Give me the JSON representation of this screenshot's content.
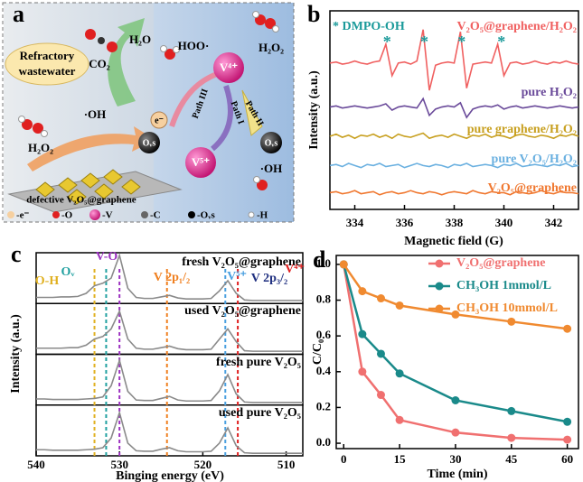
{
  "diagram": {
    "panel": "a",
    "nodes": [
      "Refractory",
      "wastewater",
      "CO₂",
      "H₂O",
      "HOO·",
      "H₂O₂",
      "·OH",
      "H₂O₂",
      "e⁻",
      "Path III",
      "Path I",
      "Path II",
      "V⁴⁺",
      "V⁵⁺",
      "Oᵥs",
      "Oᵥs",
      "·OH",
      "defective V₂O₅@graphene"
    ],
    "legend": [
      "-e⁻",
      "-O",
      "-V",
      "-C",
      "-Oᵥs",
      "-H"
    ]
  },
  "chart_data": [
    {
      "type": "line",
      "panel": "b",
      "xlabel": "Magnetic field (G)",
      "ylabel": "Intensity (a.u.)",
      "note": "* DMPO-OH",
      "note_color": "#1a9a9a",
      "peak_marker": "*",
      "peak_x": [
        335.3,
        336.8,
        338.3,
        339.9
      ],
      "xlim": [
        333,
        343
      ],
      "ylim": [
        1.5,
        11
      ],
      "xticks": [
        334,
        336,
        338,
        340,
        342
      ],
      "x": [
        333,
        333.25,
        333.5,
        333.75,
        334,
        334.25,
        334.5,
        334.75,
        335,
        335.25,
        335.5,
        335.75,
        336,
        336.25,
        336.5,
        336.75,
        337,
        337.25,
        337.5,
        337.75,
        338,
        338.25,
        338.5,
        338.75,
        339,
        339.25,
        339.5,
        339.75,
        340,
        340.25,
        340.5,
        340.75,
        341,
        341.25,
        341.5,
        341.75,
        342,
        342.25,
        342.5,
        342.75,
        343
      ],
      "series": [
        {
          "name": "V₂O₅@graphene/H₂O₂",
          "color": "#f06060",
          "values": [
            8.5,
            8.55,
            8.45,
            8.5,
            8.6,
            8.5,
            8.45,
            8.55,
            8.6,
            9.4,
            7.9,
            8.5,
            8.55,
            8.45,
            8.6,
            10.1,
            7.2,
            8.4,
            8.5,
            8.55,
            8.5,
            10.0,
            7.3,
            8.45,
            8.5,
            8.55,
            8.5,
            9.4,
            7.9,
            8.5,
            8.55,
            8.45,
            8.5,
            8.6,
            8.5,
            8.45,
            8.55,
            8.5,
            8.6,
            8.5,
            8.45
          ]
        },
        {
          "name": "pure H₂O₂",
          "color": "#6a4a9a",
          "values": [
            6.4,
            6.45,
            6.35,
            6.4,
            6.45,
            6.4,
            6.35,
            6.4,
            6.45,
            6.55,
            6.25,
            6.4,
            6.45,
            6.4,
            6.35,
            6.8,
            6.0,
            6.3,
            6.4,
            6.45,
            6.4,
            6.6,
            5.9,
            6.3,
            6.4,
            6.45,
            6.4,
            6.5,
            6.3,
            6.4,
            6.45,
            6.35,
            6.4,
            6.45,
            6.4,
            6.35,
            6.4,
            6.45,
            6.4,
            6.35,
            6.4
          ]
        },
        {
          "name": "pure graphene/H₂O₂",
          "color": "#c8a020",
          "values": [
            5.0,
            5.1,
            4.95,
            5.05,
            4.9,
            5.05,
            5.0,
            5.1,
            4.95,
            5.05,
            4.9,
            5.1,
            5.0,
            4.95,
            5.05,
            5.15,
            4.9,
            5.0,
            5.05,
            4.95,
            5.1,
            5.0,
            4.9,
            5.05,
            5.0,
            5.1,
            4.95,
            5.05,
            5.0,
            4.9,
            5.05,
            5.1,
            5.0,
            4.95,
            5.05,
            5.0,
            4.9,
            5.05,
            5.0,
            5.1,
            5.0
          ]
        },
        {
          "name": "pure V₂O₅/H₂O₂",
          "color": "#6ab0e0",
          "values": [
            3.6,
            3.65,
            3.55,
            3.7,
            3.6,
            3.5,
            3.65,
            3.6,
            3.7,
            3.55,
            3.6,
            3.65,
            3.5,
            3.6,
            3.7,
            3.6,
            3.55,
            3.65,
            3.6,
            3.5,
            3.65,
            3.6,
            3.7,
            3.55,
            3.6,
            3.65,
            3.6,
            3.5,
            3.65,
            3.6,
            3.7,
            3.55,
            3.6,
            3.65,
            3.6,
            3.55,
            3.65,
            3.6,
            3.7,
            3.55,
            3.6
          ]
        },
        {
          "name": "V₂O₅@graphene",
          "color": "#f07830",
          "values": [
            2.3,
            2.35,
            2.25,
            2.3,
            2.4,
            2.25,
            2.3,
            2.35,
            2.2,
            2.3,
            2.35,
            2.25,
            2.3,
            2.4,
            2.3,
            2.25,
            2.35,
            2.3,
            2.2,
            2.3,
            2.35,
            2.3,
            2.25,
            2.4,
            2.3,
            2.25,
            2.35,
            2.3,
            2.3,
            2.2,
            2.35,
            2.3,
            2.25,
            2.3,
            2.4,
            2.3,
            2.25,
            2.35,
            2.3,
            2.3,
            2.25
          ]
        }
      ]
    },
    {
      "type": "line",
      "panel": "c",
      "xlabel": "Binging energy (eV)",
      "ylabel": "Intensity (a.u.)",
      "separate_panels": true,
      "xlim": [
        540,
        508
      ],
      "ylim": [
        0,
        1
      ],
      "xticks": [
        540,
        530,
        520,
        510
      ],
      "x": [
        540,
        539,
        538,
        537,
        536,
        535,
        534,
        533,
        532,
        531,
        530,
        529,
        528,
        527,
        526,
        525,
        524,
        523,
        522,
        521,
        520,
        519,
        518,
        517,
        516,
        515,
        514,
        513,
        512,
        511,
        510,
        509,
        508
      ],
      "annotations": [
        {
          "text": "V-O",
          "color": "#9b30c0"
        },
        {
          "text": "O-H",
          "color": "#e0b020"
        },
        {
          "text": "Oᵥ",
          "color": "#20a0a0"
        },
        {
          "text": "V 2p₁/₂",
          "color": "#f08020"
        },
        {
          "text": "V⁵⁺",
          "color": "#4aa0e0"
        },
        {
          "text": "V 2p₃/₂",
          "color": "#203080"
        },
        {
          "text": "V⁴⁺",
          "color": "#e02020"
        }
      ],
      "reference_lines": [
        {
          "x": 530,
          "color": "#9b30c0"
        },
        {
          "x": 533,
          "color": "#e0b020"
        },
        {
          "x": 531.6,
          "color": "#20a0a0"
        },
        {
          "x": 524.3,
          "color": "#f08020"
        },
        {
          "x": 517.3,
          "color": "#4aa0e0"
        },
        {
          "x": 515.8,
          "color": "#e02020"
        }
      ],
      "series": [
        {
          "name": "fresh V₂O₅@graphene",
          "color": "#8a8a8a",
          "values": [
            0.12,
            0.12,
            0.12,
            0.13,
            0.13,
            0.14,
            0.2,
            0.35,
            0.4,
            0.5,
            0.95,
            0.3,
            0.12,
            0.1,
            0.1,
            0.13,
            0.16,
            0.11,
            0.09,
            0.09,
            0.09,
            0.1,
            0.25,
            0.45,
            0.2,
            0.07,
            0.06,
            0.06,
            0.06,
            0.06,
            0.06,
            0.06,
            0.06
          ]
        },
        {
          "name": "used V₂O₅@graphene",
          "color": "#8a8a8a",
          "values": [
            0.12,
            0.12,
            0.12,
            0.12,
            0.13,
            0.13,
            0.18,
            0.3,
            0.35,
            0.5,
            0.85,
            0.3,
            0.12,
            0.1,
            0.1,
            0.13,
            0.16,
            0.11,
            0.09,
            0.09,
            0.09,
            0.1,
            0.3,
            0.5,
            0.25,
            0.07,
            0.06,
            0.06,
            0.06,
            0.06,
            0.06,
            0.06,
            0.06
          ]
        },
        {
          "name": "fresh pure V₂O₅",
          "color": "#8a8a8a",
          "values": [
            0.12,
            0.12,
            0.11,
            0.11,
            0.11,
            0.11,
            0.12,
            0.13,
            0.16,
            0.38,
            0.88,
            0.27,
            0.1,
            0.09,
            0.09,
            0.13,
            0.17,
            0.1,
            0.08,
            0.08,
            0.08,
            0.09,
            0.28,
            0.6,
            0.22,
            0.06,
            0.05,
            0.05,
            0.05,
            0.05,
            0.05,
            0.05,
            0.05
          ]
        },
        {
          "name": "used pure V₂O₅",
          "color": "#8a8a8a",
          "values": [
            0.12,
            0.12,
            0.11,
            0.11,
            0.11,
            0.11,
            0.12,
            0.13,
            0.16,
            0.35,
            0.85,
            0.25,
            0.1,
            0.09,
            0.09,
            0.13,
            0.16,
            0.1,
            0.08,
            0.08,
            0.08,
            0.09,
            0.25,
            0.55,
            0.2,
            0.06,
            0.05,
            0.05,
            0.05,
            0.05,
            0.05,
            0.05,
            0.05
          ]
        }
      ]
    },
    {
      "type": "line",
      "panel": "d",
      "xlabel": "Time (min)",
      "ylabel": "C/C₀",
      "markers": true,
      "xlim": [
        -2,
        63
      ],
      "ylim": [
        -0.03,
        1.05
      ],
      "xticks": [
        0,
        15,
        30,
        45,
        60
      ],
      "yticks": [
        {
          "value": 0,
          "label": "0.0"
        },
        {
          "value": 0.2,
          "label": "0.2"
        },
        {
          "value": 0.4,
          "label": "0.4"
        },
        {
          "value": 0.6,
          "label": "0.6"
        },
        {
          "value": 0.8,
          "label": "0.8"
        },
        {
          "value": 1,
          "label": "1.0"
        }
      ],
      "x": [
        0,
        5,
        10,
        15,
        30,
        45,
        60
      ],
      "series": [
        {
          "name": "V₂O₅@graphene",
          "color": "#f07070",
          "values": [
            1.0,
            0.4,
            0.27,
            0.13,
            0.06,
            0.03,
            0.02
          ]
        },
        {
          "name": "CH₃OH 1mmol/L",
          "color": "#1a8a8a",
          "values": [
            1.0,
            0.61,
            0.5,
            0.39,
            0.24,
            0.18,
            0.12
          ]
        },
        {
          "name": "CH₃OH 10mmol/L",
          "color": "#f08a30",
          "values": [
            1.0,
            0.85,
            0.81,
            0.77,
            0.72,
            0.68,
            0.64
          ]
        }
      ]
    }
  ]
}
